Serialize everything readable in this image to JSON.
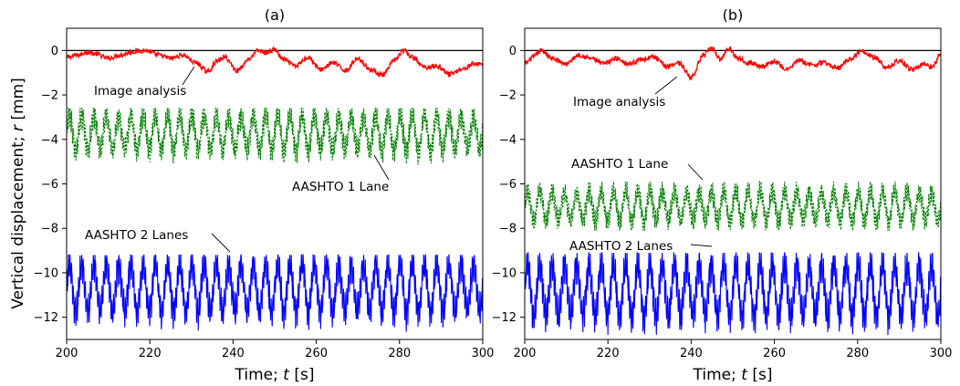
{
  "ylabel_prefix": "Vertical displacement; ",
  "ylabel_var": "r",
  "ylabel_unit": " [mm]",
  "chart_data": [
    {
      "type": "line",
      "title": "(a)",
      "xlabel_prefix": "Time; ",
      "xlabel_var": "t",
      "xlabel_unit": " [s]",
      "xlim": [
        200,
        300
      ],
      "ylim": [
        -13,
        1
      ],
      "xticks": [
        "200",
        "220",
        "240",
        "260",
        "280",
        "300"
      ],
      "yticks": [
        "0",
        "−2",
        "−4",
        "−6",
        "−8",
        "−10",
        "−12"
      ],
      "reference_line": 0,
      "series": [
        {
          "name": "Image analysis",
          "color": "#ff0000",
          "style": "solid",
          "kind": "smooth",
          "x": [
            200,
            203,
            205,
            207,
            210,
            213,
            216,
            219,
            222,
            225,
            228,
            231,
            234,
            236,
            238,
            241,
            244,
            246,
            248,
            250,
            252,
            255,
            258,
            261,
            264,
            267,
            270,
            273,
            276,
            279,
            281,
            283,
            286,
            289,
            292,
            295,
            298,
            300
          ],
          "y": [
            -0.3,
            -0.2,
            -0.05,
            -0.15,
            -0.35,
            -0.2,
            -0.05,
            0.0,
            -0.2,
            -0.35,
            -0.2,
            -0.55,
            -0.95,
            -0.5,
            -0.3,
            -0.9,
            -0.35,
            0.0,
            -0.1,
            0.05,
            -0.4,
            -0.7,
            -0.3,
            -0.85,
            -0.55,
            -0.9,
            -0.35,
            -0.85,
            -1.1,
            -0.4,
            0.0,
            -0.3,
            -0.75,
            -0.7,
            -1.05,
            -0.85,
            -0.6,
            -0.6
          ],
          "label": "Image analysis"
        },
        {
          "name": "AASHTO 1 Lane",
          "color": "#008000",
          "style": "dotted",
          "kind": "oscillation",
          "center": -3.7,
          "min": -5.2,
          "max": -2.6,
          "cycles": 34,
          "label": "AASHTO 1 Lane"
        },
        {
          "name": "AASHTO 2 Lanes",
          "color": "#0000ff",
          "style": "solid",
          "kind": "oscillation",
          "center": -10.7,
          "min": -12.7,
          "max": -9.2,
          "cycles": 34,
          "label": "AASHTO 2 Lanes"
        }
      ]
    },
    {
      "type": "line",
      "title": "(b)",
      "xlabel_prefix": "Time; ",
      "xlabel_var": "t",
      "xlabel_unit": " [s]",
      "xlim": [
        200,
        300
      ],
      "ylim": [
        -13,
        1
      ],
      "xticks": [
        "200",
        "220",
        "240",
        "260",
        "280",
        "300"
      ],
      "yticks": [
        "0",
        "−2",
        "−4",
        "−6",
        "−8",
        "−10",
        "−12"
      ],
      "reference_line": 0,
      "series": [
        {
          "name": "Image analysis",
          "color": "#ff0000",
          "style": "solid",
          "kind": "smooth",
          "x": [
            200,
            202,
            204,
            207,
            210,
            213,
            216,
            219,
            222,
            225,
            228,
            231,
            234,
            237,
            240,
            243,
            245,
            247,
            249,
            251,
            254,
            257,
            260,
            263,
            266,
            269,
            272,
            275,
            278,
            281,
            284,
            287,
            290,
            293,
            296,
            298,
            300
          ],
          "y": [
            -0.6,
            -0.3,
            0.0,
            -0.4,
            -0.6,
            -0.2,
            -0.35,
            -0.6,
            -0.35,
            -0.6,
            -0.4,
            -0.3,
            -0.7,
            -0.55,
            -1.2,
            -0.2,
            0.1,
            -0.4,
            0.1,
            -0.3,
            -0.55,
            -0.7,
            -0.5,
            -0.85,
            -0.45,
            -0.65,
            -0.55,
            -0.8,
            -0.4,
            0.0,
            -0.3,
            -0.8,
            -0.45,
            -0.85,
            -0.6,
            -0.75,
            -0.1
          ],
          "label": "Image analysis"
        },
        {
          "name": "AASHTO 1 Lane",
          "color": "#008000",
          "style": "dotted",
          "kind": "oscillation",
          "center": -7.0,
          "min": -8.1,
          "max": -5.9,
          "cycles": 34,
          "label": "AASHTO 1 Lane"
        },
        {
          "name": "AASHTO 2 Lanes",
          "color": "#0000ff",
          "style": "solid",
          "kind": "oscillation",
          "center": -10.8,
          "min": -12.9,
          "max": -9.1,
          "cycles": 34,
          "label": "AASHTO 2 Lanes"
        }
      ]
    }
  ]
}
